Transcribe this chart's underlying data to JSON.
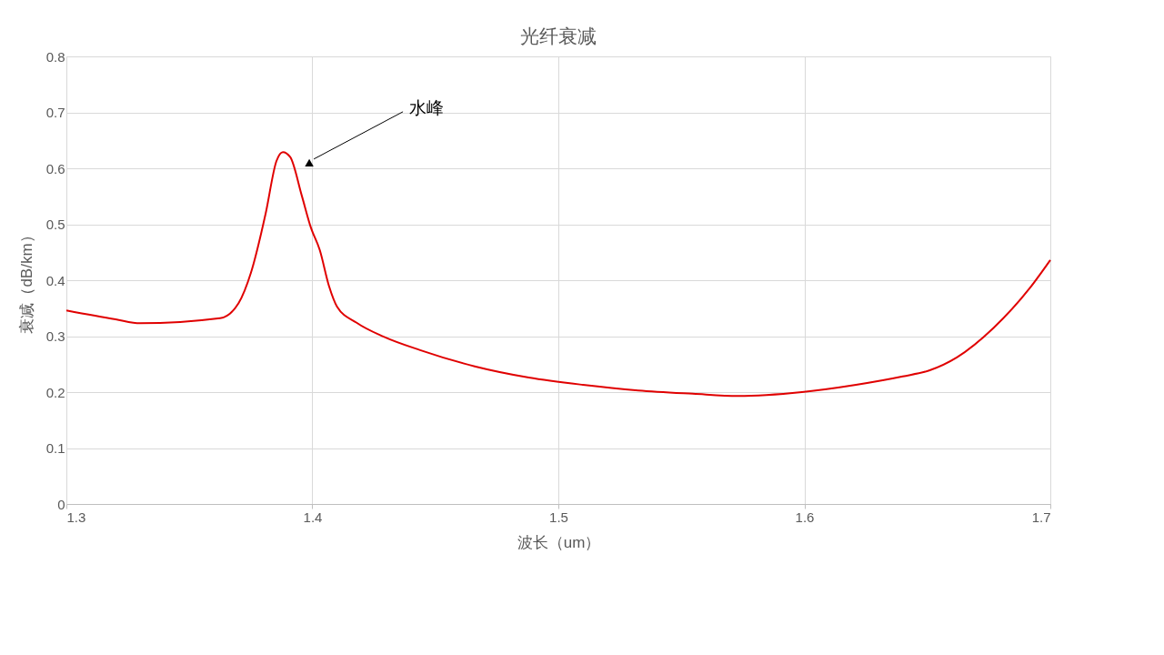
{
  "chart_data": {
    "type": "line",
    "title": "光纤衰减",
    "xlabel": "波长（um）",
    "ylabel": "衰减（dB/km）",
    "x": [
      1.3,
      1.32,
      1.33,
      1.3625,
      1.37,
      1.375,
      1.381,
      1.3854,
      1.388,
      1.391,
      1.3957,
      1.3994,
      1.403,
      1.4068,
      1.41,
      1.418,
      1.429,
      1.4438,
      1.466,
      1.488,
      1.51,
      1.5325,
      1.5547,
      1.573,
      1.599,
      1.621,
      1.64,
      1.651,
      1.662,
      1.677,
      1.6915,
      1.7
    ],
    "series": [
      {
        "color": "#e00000",
        "values": [
          0.346,
          0.33,
          0.323,
          0.332,
          0.359,
          0.413,
          0.519,
          0.613,
          0.629,
          0.62,
          0.551,
          0.494,
          0.454,
          0.389,
          0.353,
          0.324,
          0.299,
          0.275,
          0.246,
          0.226,
          0.213,
          0.203,
          0.197,
          0.193,
          0.2,
          0.213,
          0.228,
          0.239,
          0.262,
          0.315,
          0.385,
          0.436
        ]
      }
    ],
    "xlim": [
      1.3,
      1.7
    ],
    "xticks": [
      1.3,
      1.4,
      1.5,
      1.6,
      1.7
    ],
    "ylim": [
      0,
      0.8
    ],
    "yticks": [
      0,
      0.1,
      0.2,
      0.3,
      0.4,
      0.5,
      0.6,
      0.7,
      0.8
    ],
    "grid": true,
    "marker": "none",
    "line_style": "solid",
    "annotations": [
      {
        "text": "水峰",
        "x": 1.398,
        "y": 0.61
      }
    ]
  }
}
